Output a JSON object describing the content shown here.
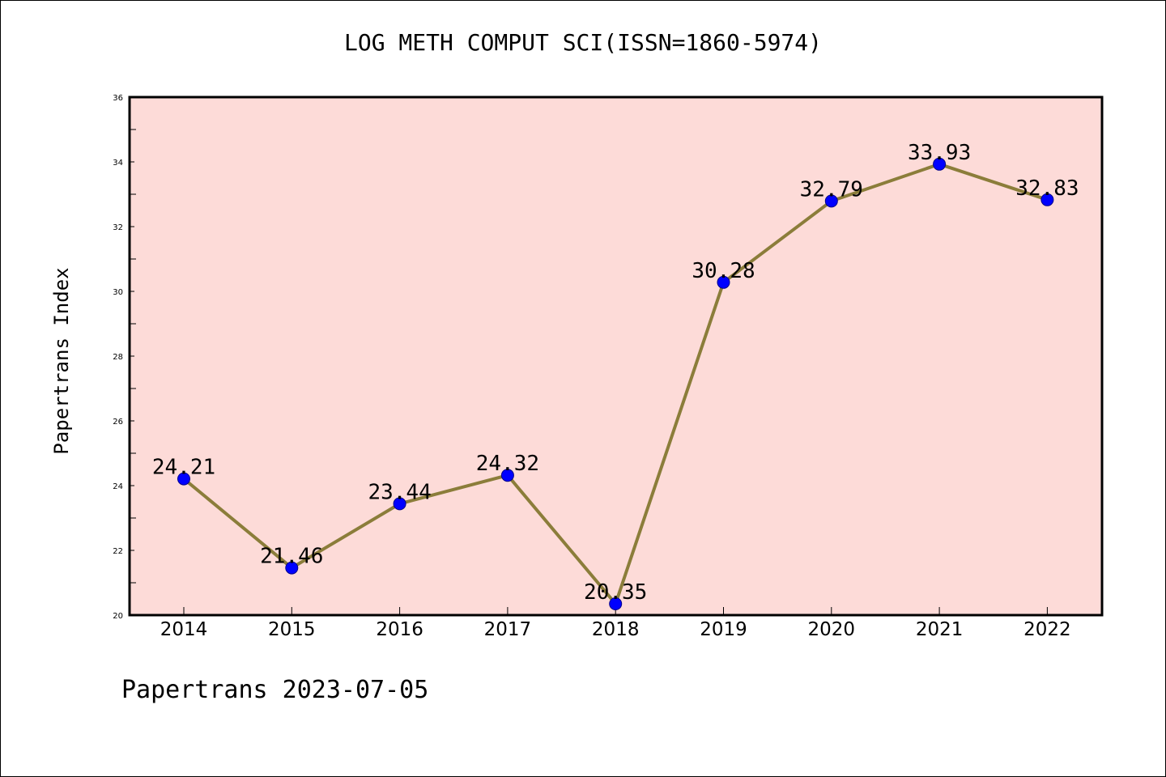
{
  "title": "LOG METH COMPUT SCI(ISSN=1860-5974)",
  "footer": "Papertrans 2023-07-05",
  "colors": {
    "plot_background": "#fddbd8",
    "line": "#8b7d3a",
    "marker": "#0000ff"
  },
  "chart_data": {
    "type": "line",
    "title": "LOG METH COMPUT SCI(ISSN=1860-5974)",
    "xlabel": "",
    "ylabel": "Papertrans Index",
    "categories": [
      "2014",
      "2015",
      "2016",
      "2017",
      "2018",
      "2019",
      "2020",
      "2021",
      "2022"
    ],
    "series": [
      {
        "values": [
          24.21,
          21.46,
          23.44,
          24.32,
          20.35,
          30.28,
          32.79,
          33.93,
          32.83
        ],
        "labels": [
          "24.21",
          "21.46",
          "23.44",
          "24.32",
          "20.35",
          "30.28",
          "32.79",
          "33.93",
          "32.83"
        ]
      }
    ],
    "ylim": [
      20,
      36
    ],
    "yticks": [
      "20",
      "22",
      "24",
      "26",
      "28",
      "30",
      "32",
      "34",
      "36"
    ],
    "grid": false,
    "legend": "none"
  }
}
